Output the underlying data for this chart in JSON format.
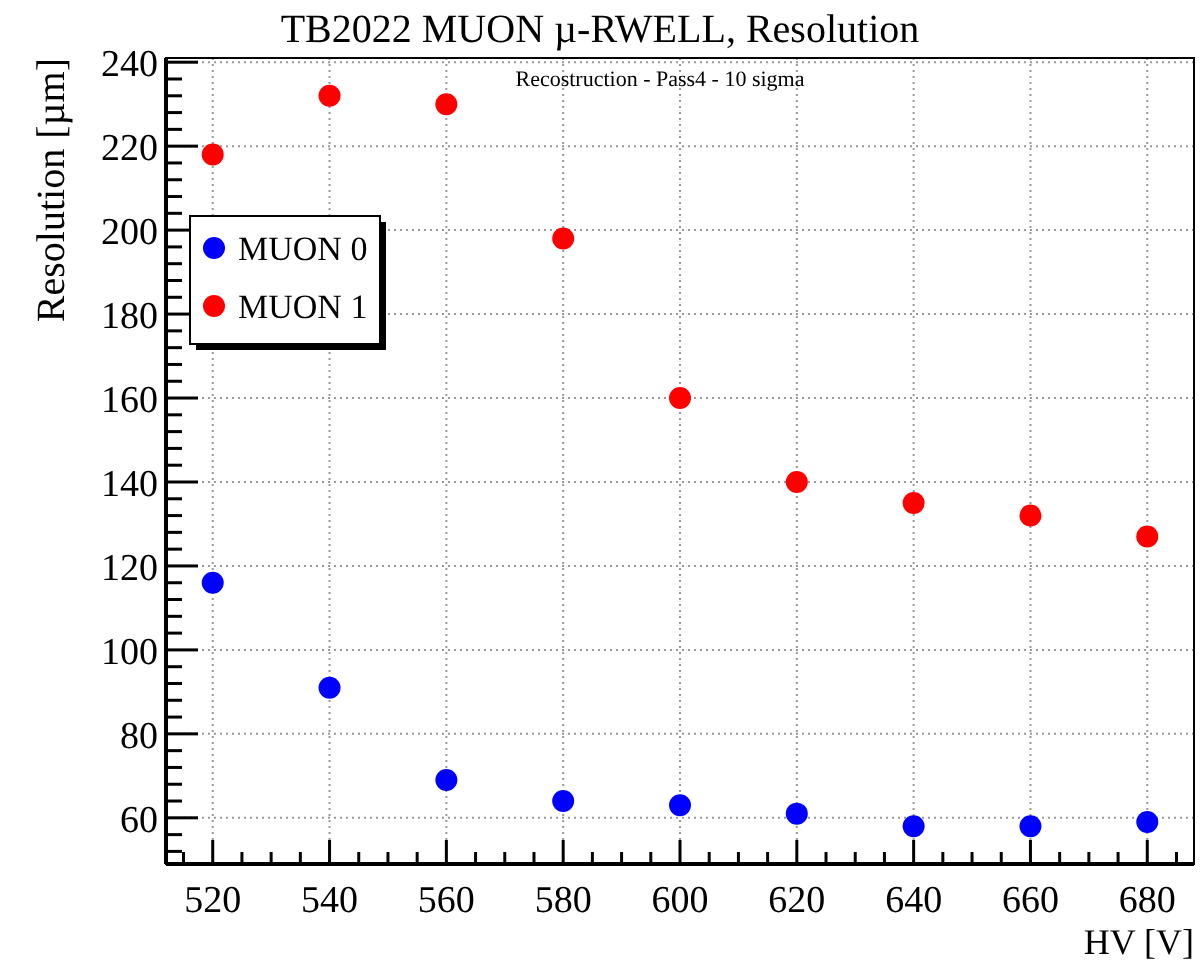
{
  "chart_data": {
    "type": "scatter",
    "title": "TB2022 MUON µ-RWELL, Resolution",
    "subtitle": "Recostruction - Pass4 - 10 sigma",
    "xlabel": "HV [V]",
    "ylabel": "Resolution [µm]",
    "x": [
      520,
      540,
      560,
      580,
      600,
      620,
      640,
      660,
      680
    ],
    "series": [
      {
        "name": "MUON 0",
        "color": "#0000ff",
        "values": [
          116,
          91,
          69,
          64,
          63,
          61,
          58,
          58,
          59
        ]
      },
      {
        "name": "MUON 1",
        "color": "#ff0000",
        "values": [
          218,
          232,
          230,
          198,
          160,
          140,
          135,
          132,
          127
        ]
      }
    ],
    "xlim": [
      512,
      688
    ],
    "ylim": [
      49,
      241
    ],
    "xticks": [
      {
        "value": 515,
        "label": null
      },
      520,
      {
        "value": 525,
        "label": null
      },
      {
        "value": 530,
        "label": null
      },
      {
        "value": 535,
        "label": null
      },
      540,
      {
        "value": 545,
        "label": null
      },
      {
        "value": 550,
        "label": null
      },
      {
        "value": 555,
        "label": null
      },
      560,
      {
        "value": 565,
        "label": null
      },
      {
        "value": 570,
        "label": null
      },
      {
        "value": 575,
        "label": null
      },
      580,
      {
        "value": 585,
        "label": null
      },
      {
        "value": 590,
        "label": null
      },
      {
        "value": 595,
        "label": null
      },
      600,
      {
        "value": 605,
        "label": null
      },
      {
        "value": 610,
        "label": null
      },
      {
        "value": 615,
        "label": null
      },
      620,
      {
        "value": 625,
        "label": null
      },
      {
        "value": 630,
        "label": null
      },
      {
        "value": 635,
        "label": null
      },
      640,
      {
        "value": 645,
        "label": null
      },
      {
        "value": 650,
        "label": null
      },
      {
        "value": 655,
        "label": null
      },
      660,
      {
        "value": 665,
        "label": null
      },
      {
        "value": 670,
        "label": null
      },
      {
        "value": 675,
        "label": null
      },
      680,
      {
        "value": 685,
        "label": null
      }
    ],
    "yticks": [
      {
        "value": 52,
        "label": null
      },
      {
        "value": 56,
        "label": null
      },
      60,
      {
        "value": 64,
        "label": null
      },
      {
        "value": 68,
        "label": null
      },
      {
        "value": 72,
        "label": null
      },
      {
        "value": 76,
        "label": null
      },
      80,
      {
        "value": 84,
        "label": null
      },
      {
        "value": 88,
        "label": null
      },
      {
        "value": 92,
        "label": null
      },
      {
        "value": 96,
        "label": null
      },
      100,
      {
        "value": 104,
        "label": null
      },
      {
        "value": 108,
        "label": null
      },
      {
        "value": 112,
        "label": null
      },
      {
        "value": 116,
        "label": null
      },
      120,
      {
        "value": 124,
        "label": null
      },
      {
        "value": 128,
        "label": null
      },
      {
        "value": 132,
        "label": null
      },
      {
        "value": 136,
        "label": null
      },
      140,
      {
        "value": 144,
        "label": null
      },
      {
        "value": 148,
        "label": null
      },
      {
        "value": 152,
        "label": null
      },
      {
        "value": 156,
        "label": null
      },
      160,
      {
        "value": 164,
        "label": null
      },
      {
        "value": 168,
        "label": null
      },
      {
        "value": 172,
        "label": null
      },
      {
        "value": 176,
        "label": null
      },
      180,
      {
        "value": 184,
        "label": null
      },
      {
        "value": 188,
        "label": null
      },
      {
        "value": 192,
        "label": null
      },
      {
        "value": 196,
        "label": null
      },
      200,
      {
        "value": 204,
        "label": null
      },
      {
        "value": 208,
        "label": null
      },
      {
        "value": 212,
        "label": null
      },
      {
        "value": 216,
        "label": null
      },
      220,
      {
        "value": 224,
        "label": null
      },
      {
        "value": 228,
        "label": null
      },
      {
        "value": 232,
        "label": null
      },
      {
        "value": 236,
        "label": null
      },
      240
    ],
    "grid": true,
    "legend": "top left",
    "marker": "circle"
  }
}
